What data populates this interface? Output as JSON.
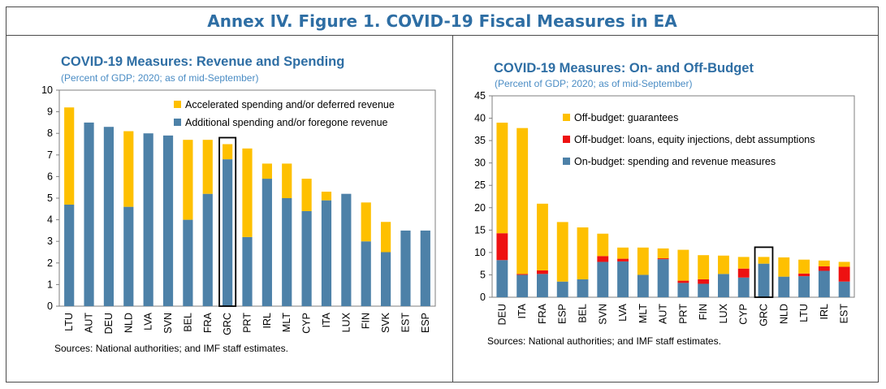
{
  "figure": {
    "title": "Annex IV. Figure 1. COVID-19 Fiscal Measures in EA"
  },
  "colors": {
    "title": "#2e6ea4",
    "subtitle": "#4a8cc4",
    "blue": "#4d81a8",
    "yellow": "#fec000",
    "red": "#ee1111",
    "highlight": "#000000"
  },
  "chart_data": [
    {
      "type": "bar",
      "stacked": true,
      "title": "COVID-19 Measures: Revenue and Spending",
      "subtitle": "(Percent of GDP; 2020; as of mid-September)",
      "categories": [
        "LTU",
        "AUT",
        "DEU",
        "NLD",
        "LVA",
        "SVN",
        "BEL",
        "FRA",
        "GRC",
        "PRT",
        "IRL",
        "MLT",
        "CYP",
        "ITA",
        "LUX",
        "FIN",
        "SVK",
        "EST",
        "ESP"
      ],
      "series": [
        {
          "name": "Additional spending and/or foregone revenue",
          "color": "#4d81a8",
          "values": [
            4.7,
            8.5,
            8.3,
            4.6,
            8.0,
            7.9,
            4.0,
            5.2,
            6.8,
            3.2,
            5.9,
            5.0,
            4.4,
            4.9,
            5.2,
            3.0,
            2.5,
            3.5,
            3.5
          ]
        },
        {
          "name": "Accelerated spending and/or deferred revenue",
          "color": "#fec000",
          "values": [
            4.5,
            0,
            0,
            3.5,
            0,
            0,
            3.7,
            2.5,
            0.7,
            4.1,
            0.7,
            1.6,
            1.5,
            0.4,
            0,
            1.8,
            1.4,
            0,
            0
          ]
        }
      ],
      "legend": [
        "Accelerated spending and/or deferred revenue",
        "Additional spending and/or foregone revenue"
      ],
      "legend_position": "top-right",
      "highlight": "GRC",
      "ylim": [
        0,
        10
      ],
      "yticks": [
        "0",
        "1",
        "2",
        "3",
        "4",
        "5",
        "6",
        "7",
        "8",
        "9",
        "10"
      ],
      "xlabel": "",
      "ylabel": "",
      "source": "Sources: National authorities; and IMF staff estimates."
    },
    {
      "type": "bar",
      "stacked": true,
      "title": "COVID-19 Measures: On- and Off-Budget",
      "subtitle": "(Percent of GDP; 2020; as of mid-September)",
      "categories": [
        "DEU",
        "ITA",
        "FRA",
        "ESP",
        "BEL",
        "SVN",
        "LVA",
        "MLT",
        "AUT",
        "PRT",
        "FIN",
        "LUX",
        "CYP",
        "GRC",
        "NLD",
        "LTU",
        "IRL",
        "EST"
      ],
      "series": [
        {
          "name": "On-budget: spending and revenue measures",
          "color": "#4d81a8",
          "values": [
            8.3,
            5.0,
            5.2,
            3.5,
            4.0,
            7.9,
            8.0,
            5.0,
            8.5,
            3.2,
            3.0,
            5.2,
            4.4,
            7.5,
            4.6,
            4.7,
            5.9,
            3.5
          ]
        },
        {
          "name": "Off-budget: loans, equity injections, debt assumptions",
          "color": "#ee1111",
          "values": [
            6.0,
            0.2,
            0.8,
            0,
            0,
            1.3,
            0.6,
            0,
            0.2,
            0.5,
            1.0,
            0,
            2.0,
            0,
            0,
            0.6,
            1.0,
            3.3
          ]
        },
        {
          "name": "Off-budget: guarantees",
          "color": "#fec000",
          "values": [
            24.7,
            32.6,
            14.9,
            13.3,
            11.6,
            5.0,
            2.5,
            6.1,
            2.2,
            6.9,
            5.4,
            4.1,
            2.6,
            1.5,
            4.3,
            3.1,
            1.3,
            1.1
          ]
        }
      ],
      "legend": [
        "Off-budget: guarantees",
        "Off-budget: loans, equity injections, debt assumptions",
        "On-budget: spending and revenue measures"
      ],
      "legend_position": "top-right",
      "highlight": "GRC",
      "ylim": [
        0,
        45
      ],
      "yticks": [
        "0",
        "5",
        "10",
        "15",
        "20",
        "25",
        "30",
        "35",
        "40",
        "45"
      ],
      "xlabel": "",
      "ylabel": "",
      "source": "Sources: National authorities; and IMF staff estimates."
    }
  ]
}
